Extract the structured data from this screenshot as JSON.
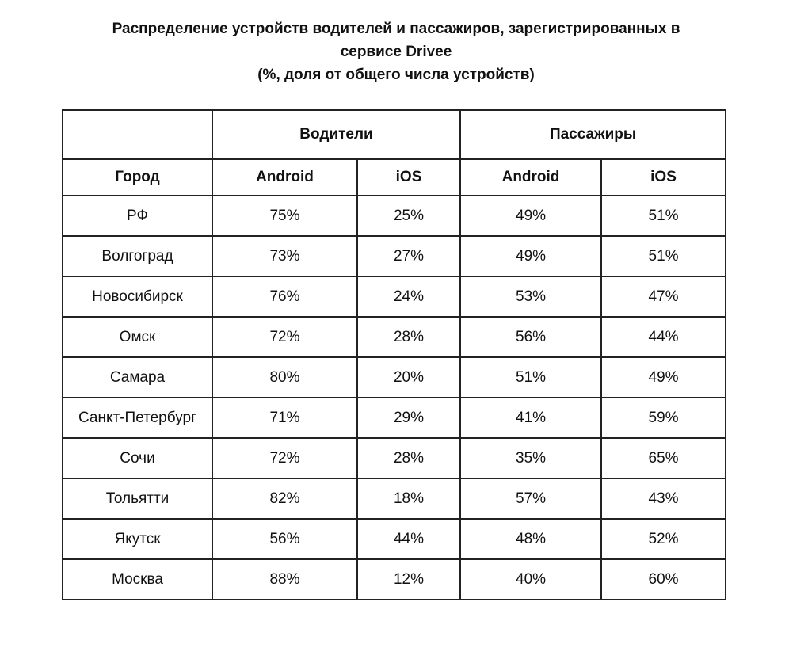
{
  "title": {
    "line1": "Распределение устройств водителей и пассажиров, зарегистрированных в",
    "line2": "сервисе Drivee",
    "line3": "(%, доля от общего числа устройств)"
  },
  "table": {
    "group_headers": {
      "empty": "",
      "drivers": "Водители",
      "passengers": "Пассажиры"
    },
    "sub_headers": {
      "city": "Город",
      "drivers_android": "Android",
      "drivers_ios": "iOS",
      "passengers_android": "Android",
      "passengers_ios": "iOS"
    },
    "rows": [
      {
        "city": "РФ",
        "drivers_android": "75%",
        "drivers_ios": "25%",
        "passengers_android": "49%",
        "passengers_ios": "51%"
      },
      {
        "city": "Волгоград",
        "drivers_android": "73%",
        "drivers_ios": "27%",
        "passengers_android": "49%",
        "passengers_ios": "51%"
      },
      {
        "city": "Новосибирск",
        "drivers_android": "76%",
        "drivers_ios": "24%",
        "passengers_android": "53%",
        "passengers_ios": "47%"
      },
      {
        "city": "Омск",
        "drivers_android": "72%",
        "drivers_ios": "28%",
        "passengers_android": "56%",
        "passengers_ios": "44%"
      },
      {
        "city": "Самара",
        "drivers_android": "80%",
        "drivers_ios": "20%",
        "passengers_android": "51%",
        "passengers_ios": "49%"
      },
      {
        "city": "Санкт-Петербург",
        "drivers_android": "71%",
        "drivers_ios": "29%",
        "passengers_android": "41%",
        "passengers_ios": "59%"
      },
      {
        "city": "Сочи",
        "drivers_android": "72%",
        "drivers_ios": "28%",
        "passengers_android": "35%",
        "passengers_ios": "65%"
      },
      {
        "city": "Тольятти",
        "drivers_android": "82%",
        "drivers_ios": "18%",
        "passengers_android": "57%",
        "passengers_ios": "43%"
      },
      {
        "city": "Якутск",
        "drivers_android": "56%",
        "drivers_ios": "44%",
        "passengers_android": "48%",
        "passengers_ios": "52%"
      },
      {
        "city": "Москва",
        "drivers_android": "88%",
        "drivers_ios": "12%",
        "passengers_android": "40%",
        "passengers_ios": "60%"
      }
    ]
  },
  "colors": {
    "background": "#ffffff",
    "text": "#111111",
    "border": "#222222"
  }
}
